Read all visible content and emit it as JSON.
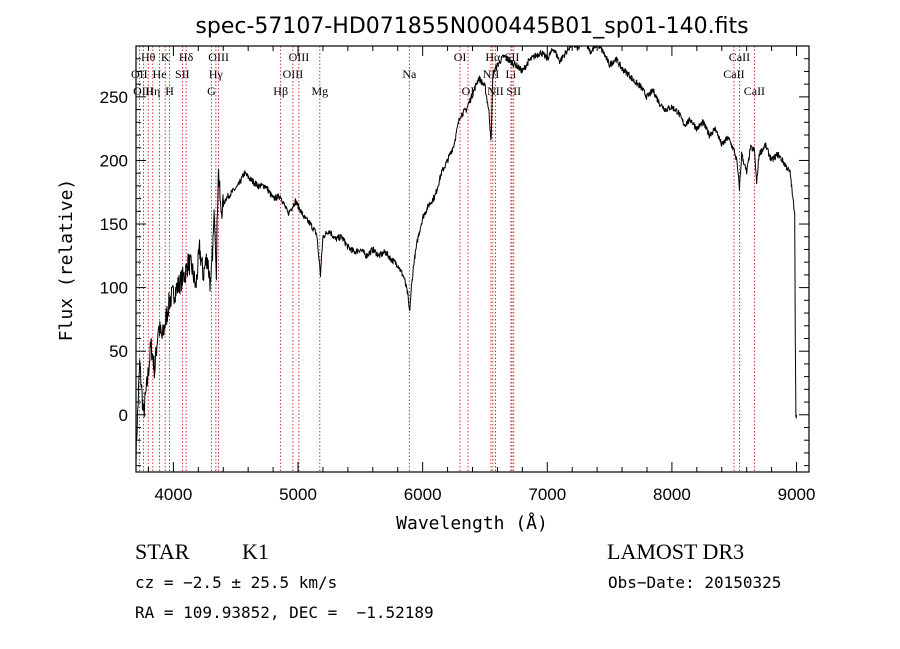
{
  "chart_data": {
    "type": "line",
    "title": "spec-57107-HD071855N000445B01_sp01-140.fits",
    "xlabel": "Wavelength (Å)",
    "ylabel": "Flux (relative)",
    "xlim": [
      3700,
      9100
    ],
    "ylim": [
      -45,
      290
    ],
    "xticks": [
      4000,
      5000,
      6000,
      7000,
      8000,
      9000
    ],
    "yticks": [
      0,
      50,
      100,
      150,
      200,
      250
    ],
    "series": [
      {
        "x": [
          3700,
          3730,
          3760,
          3790,
          3820,
          3850,
          3880,
          3910,
          3940,
          3970,
          4000,
          4030,
          4060,
          4090,
          4120,
          4150,
          4180,
          4210,
          4240,
          4270,
          4300,
          4330,
          4345,
          4360,
          4380,
          4420,
          4470,
          4520,
          4570,
          4620,
          4680,
          4740,
          4800,
          4860,
          4920,
          4980,
          5050,
          5100,
          5150,
          5180,
          5200,
          5250,
          5300,
          5350,
          5400,
          5450,
          5500,
          5550,
          5600,
          5650,
          5700,
          5750,
          5800,
          5850,
          5880,
          5895,
          5910,
          5930,
          5960,
          6000,
          6050,
          6100,
          6150,
          6200,
          6250,
          6300,
          6350,
          6400,
          6450,
          6500,
          6530,
          6550,
          6563,
          6575,
          6600,
          6650,
          6700,
          6750,
          6800,
          6850,
          6900,
          6950,
          7000,
          7050,
          7100,
          7150,
          7200,
          7250,
          7300,
          7350,
          7400,
          7450,
          7500,
          7550,
          7600,
          7650,
          7700,
          7750,
          7800,
          7850,
          7900,
          7950,
          8000,
          8050,
          8100,
          8150,
          8200,
          8250,
          8300,
          8350,
          8400,
          8450,
          8498,
          8520,
          8542,
          8560,
          8600,
          8630,
          8662,
          8680,
          8700,
          8750,
          8800,
          8850,
          8900,
          8950,
          8970,
          8985,
          8990,
          8995,
          9000
        ],
        "y": [
          -30,
          40,
          0,
          25,
          55,
          35,
          70,
          60,
          75,
          90,
          95,
          100,
          105,
          110,
          120,
          115,
          100,
          130,
          110,
          125,
          100,
          160,
          115,
          195,
          160,
          170,
          175,
          180,
          190,
          185,
          180,
          180,
          170,
          172,
          158,
          168,
          155,
          150,
          142,
          110,
          140,
          145,
          138,
          140,
          132,
          128,
          130,
          125,
          130,
          125,
          128,
          122,
          118,
          108,
          95,
          80,
          100,
          120,
          138,
          155,
          165,
          172,
          190,
          200,
          212,
          235,
          240,
          252,
          265,
          258,
          240,
          215,
          268,
          270,
          275,
          282,
          278,
          275,
          270,
          278,
          282,
          285,
          280,
          288,
          278,
          285,
          292,
          288,
          295,
          285,
          292,
          285,
          275,
          280,
          272,
          268,
          262,
          258,
          250,
          255,
          245,
          240,
          242,
          238,
          228,
          232,
          225,
          230,
          220,
          225,
          212,
          218,
          208,
          200,
          178,
          205,
          190,
          210,
          208,
          182,
          205,
          212,
          200,
          205,
          198,
          190,
          170,
          160,
          60,
          0,
          0
        ]
      }
    ],
    "line_markers": [
      {
        "label": "Hθ",
        "x": 3798,
        "row": 1
      },
      {
        "label": "OII",
        "x": 3727,
        "row": 2
      },
      {
        "label": "OIII",
        "x": 3760,
        "row": 3
      },
      {
        "label": "K",
        "x": 3934,
        "row": 1
      },
      {
        "label": "He",
        "x": 3889,
        "row": 2
      },
      {
        "label": "Hη",
        "x": 3835,
        "row": 3
      },
      {
        "label": "SII",
        "x": 4072,
        "row": 2
      },
      {
        "label": "H",
        "x": 3969,
        "row": 3
      },
      {
        "label": "Hδ",
        "x": 4102,
        "row": 1
      },
      {
        "label": "OIII",
        "x": 4363,
        "row": 1
      },
      {
        "label": "Hγ",
        "x": 4341,
        "row": 2
      },
      {
        "label": "G",
        "x": 4305,
        "row": 3
      },
      {
        "label": "Hβ",
        "x": 4861,
        "row": 3
      },
      {
        "label": "OIII",
        "x": 5007,
        "row": 1
      },
      {
        "label": "OIII",
        "x": 4959,
        "row": 2
      },
      {
        "label": "Mg",
        "x": 5175,
        "row": 3
      },
      {
        "label": "Na",
        "x": 5893,
        "row": 2
      },
      {
        "label": "OI",
        "x": 6300,
        "row": 1
      },
      {
        "label": "OI",
        "x": 6364,
        "row": 3
      },
      {
        "label": "Hα",
        "x": 6563,
        "row": 1
      },
      {
        "label": "SII",
        "x": 6717,
        "row": 1
      },
      {
        "label": "NII",
        "x": 6548,
        "row": 2
      },
      {
        "label": "Li",
        "x": 6708,
        "row": 2
      },
      {
        "label": "NII",
        "x": 6584,
        "row": 3
      },
      {
        "label": "SII",
        "x": 6731,
        "row": 3
      },
      {
        "label": "CaII",
        "x": 8542,
        "row": 1
      },
      {
        "label": "CaII",
        "x": 8498,
        "row": 2
      },
      {
        "label": "CaII",
        "x": 8662,
        "row": 3
      }
    ]
  },
  "info": {
    "class": "STAR",
    "subclass": "K1",
    "survey": "LAMOST DR3",
    "cz": "cz = −2.5 ± 25.5 km/s",
    "obs_date": "Obs−Date: 20150325",
    "coords": "RA = 109.93852, DEC =  −1.52189"
  },
  "colors": {
    "spectrum": "#000000",
    "marker_line": "#cc0000"
  }
}
